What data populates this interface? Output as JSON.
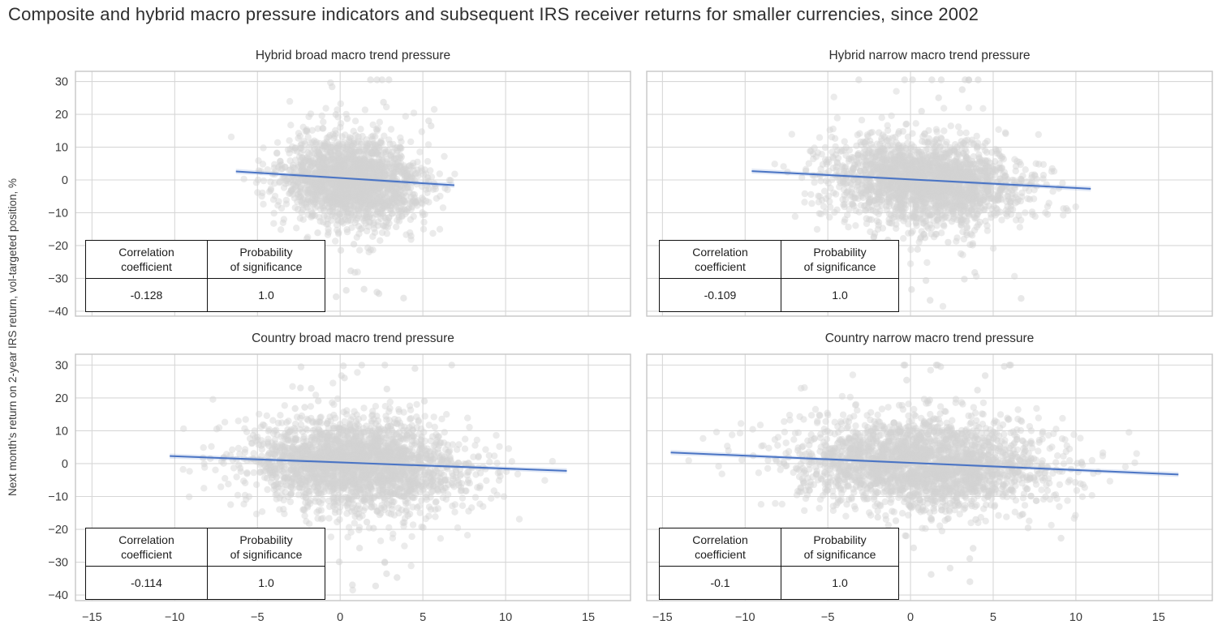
{
  "page_title": "Composite and hybrid macro pressure indicators and subsequent IRS receiver returns for smaller currencies, since 2002",
  "ylabel": "Next month's return on 2-year IRS return, vol-targeted position, %",
  "stat_table": {
    "col1_header": "Correlation\ncoefficient",
    "col2_header": "Probability\nof significance"
  },
  "colors": {
    "trend_line": "#4a74c4",
    "trend_band": "rgba(74,116,196,0.16)",
    "point": "#d2d2d2",
    "grid": "#d7d7d7",
    "spine": "#c6c6c6",
    "text": "#3c3c3c",
    "title": "#2e2e2e"
  },
  "chart_data": [
    {
      "type": "scatter",
      "title": "Hybrid broad macro trend pressure",
      "correlation": "-0.128",
      "probability": "1.0",
      "xlim": [
        -16.0,
        17.55
      ],
      "ylim": [
        -41.5,
        33.1
      ],
      "x_tick_values": [
        -15,
        -10,
        -5,
        0,
        5,
        10,
        15
      ],
      "x_tick_labels": [
        "−15",
        "−10",
        "−5",
        "0",
        "5",
        "10",
        "15"
      ],
      "y_tick_values": [
        30,
        20,
        10,
        0,
        -10,
        -20,
        -30,
        -40
      ],
      "y_tick_labels": [
        "30",
        "20",
        "10",
        "0",
        "−10",
        "−20",
        "−30",
        "−40"
      ],
      "grid": true,
      "legend": "none",
      "trend": {
        "x1": -6.3,
        "y1": 2.6,
        "x2": 6.9,
        "y2": -1.6
      },
      "cloud": {
        "n": 2000,
        "x_mean": 0.7,
        "x_std": 2.1,
        "x_min": -6.6,
        "x_max": 7.3,
        "y_std": 6.6,
        "y_min": -38.0,
        "y_max": 30.5,
        "xy_slope": -0.33,
        "outliers": 22,
        "seed": 11
      }
    },
    {
      "type": "scatter",
      "title": "Hybrid narrow macro trend pressure",
      "correlation": "-0.109",
      "probability": "1.0",
      "xlim": [
        -15.95,
        18.25
      ],
      "ylim": [
        -41.5,
        33.1
      ],
      "x_tick_values": [
        -15,
        -10,
        -5,
        0,
        5,
        10,
        15
      ],
      "x_tick_labels": [
        "−15",
        "−10",
        "−5",
        "0",
        "5",
        "10",
        "15"
      ],
      "y_tick_values": [
        30,
        20,
        10,
        0,
        -10,
        -20,
        -30,
        -40
      ],
      "y_tick_labels": [
        "30",
        "20",
        "10",
        "0",
        "−10",
        "−20",
        "−30",
        "−40"
      ],
      "grid": true,
      "legend": "none",
      "trend": {
        "x1": -9.6,
        "y1": 2.7,
        "x2": 10.9,
        "y2": -2.7
      },
      "cloud": {
        "n": 2200,
        "x_mean": 0.9,
        "x_std": 2.9,
        "x_min": -9.8,
        "x_max": 13.6,
        "y_std": 6.6,
        "y_min": -38.5,
        "y_max": 30.5,
        "xy_slope": -0.3,
        "outliers": 26,
        "seed": 22
      }
    },
    {
      "type": "scatter",
      "title": "Country broad macro trend pressure",
      "correlation": "-0.114",
      "probability": "1.0",
      "xlim": [
        -16.0,
        17.55
      ],
      "ylim": [
        -41.7,
        33.3
      ],
      "x_tick_values": [
        -15,
        -10,
        -5,
        0,
        5,
        10,
        15
      ],
      "x_tick_labels": [
        "−15",
        "−10",
        "−5",
        "0",
        "5",
        "10",
        "15"
      ],
      "y_tick_values": [
        30,
        20,
        10,
        0,
        -10,
        -20,
        -30,
        -40
      ],
      "y_tick_labels": [
        "30",
        "20",
        "10",
        "0",
        "−10",
        "−20",
        "−30",
        "−40"
      ],
      "grid": true,
      "legend": "none",
      "trend": {
        "x1": -10.3,
        "y1": 2.3,
        "x2": 13.7,
        "y2": -2.2
      },
      "cloud": {
        "n": 2400,
        "x_mean": 1.0,
        "x_std": 3.3,
        "x_min": -10.6,
        "x_max": 13.9,
        "y_std": 6.8,
        "y_min": -38.5,
        "y_max": 30.0,
        "xy_slope": -0.22,
        "outliers": 28,
        "seed": 33
      }
    },
    {
      "type": "scatter",
      "title": "Country narrow macro trend pressure",
      "correlation": "-0.1",
      "probability": "1.0",
      "xlim": [
        -15.95,
        18.25
      ],
      "ylim": [
        -41.7,
        33.3
      ],
      "x_tick_values": [
        -15,
        -10,
        -5,
        0,
        5,
        10,
        15
      ],
      "x_tick_labels": [
        "−15",
        "−10",
        "−5",
        "0",
        "5",
        "10",
        "15"
      ],
      "y_tick_values": [
        30,
        20,
        10,
        0,
        -10,
        -20,
        -30,
        -40
      ],
      "y_tick_labels": [
        "30",
        "20",
        "10",
        "0",
        "−10",
        "−20",
        "−30",
        "−40"
      ],
      "grid": true,
      "legend": "none",
      "trend": {
        "x1": -14.5,
        "y1": 3.4,
        "x2": 16.2,
        "y2": -3.3
      },
      "cloud": {
        "n": 2400,
        "x_mean": 0.8,
        "x_std": 3.9,
        "x_min": -14.6,
        "x_max": 16.4,
        "y_std": 6.8,
        "y_min": -39.0,
        "y_max": 30.0,
        "xy_slope": -0.21,
        "outliers": 28,
        "seed": 44
      }
    }
  ]
}
